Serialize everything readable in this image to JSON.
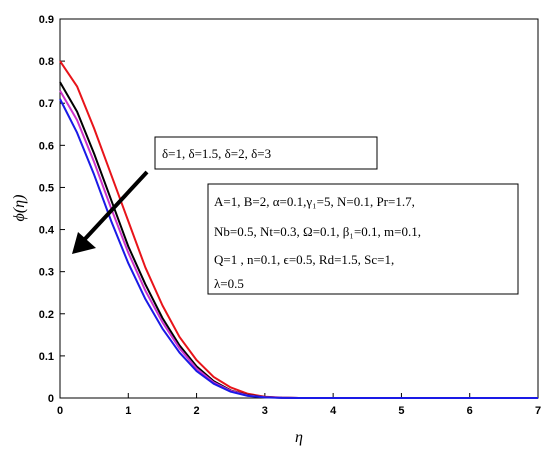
{
  "chart_data": {
    "type": "line",
    "title": "",
    "xlabel": "η",
    "ylabel": "ϕ(η)",
    "xlim": [
      0,
      7
    ],
    "ylim": [
      0,
      0.9
    ],
    "xticks": [
      "0",
      "1",
      "2",
      "3",
      "4",
      "5",
      "6",
      "7"
    ],
    "yticks": [
      "0",
      "0.1",
      "0.2",
      "0.3",
      "0.4",
      "0.5",
      "0.6",
      "0.7",
      "0.8",
      "0.9"
    ],
    "grid": false,
    "series": [
      {
        "color": "#e8141a",
        "x": [
          0,
          0.25,
          0.5,
          0.75,
          1.0,
          1.25,
          1.5,
          1.75,
          2.0,
          2.25,
          2.5,
          2.75,
          3.0,
          3.25,
          3.5,
          4.0,
          5.0,
          6.0,
          7.0
        ],
        "y": [
          0.8,
          0.74,
          0.64,
          0.53,
          0.42,
          0.31,
          0.22,
          0.145,
          0.09,
          0.05,
          0.025,
          0.01,
          0.003,
          0.001,
          0,
          0,
          0,
          0,
          0
        ]
      },
      {
        "color": "#000000",
        "x": [
          0,
          0.25,
          0.5,
          0.75,
          1.0,
          1.25,
          1.5,
          1.75,
          2.0,
          2.25,
          2.5,
          2.75,
          3.0,
          3.25,
          3.5,
          4.0,
          5.0,
          6.0,
          7.0
        ],
        "y": [
          0.75,
          0.68,
          0.58,
          0.47,
          0.36,
          0.27,
          0.19,
          0.125,
          0.075,
          0.04,
          0.018,
          0.007,
          0.002,
          0.0005,
          0,
          0,
          0,
          0,
          0
        ]
      },
      {
        "color": "#cc33cc",
        "x": [
          0,
          0.25,
          0.5,
          0.75,
          1.0,
          1.25,
          1.5,
          1.75,
          2.0,
          2.25,
          2.5,
          2.75,
          3.0,
          3.25,
          3.5,
          4.0,
          5.0,
          6.0,
          7.0
        ],
        "y": [
          0.73,
          0.66,
          0.56,
          0.45,
          0.345,
          0.255,
          0.18,
          0.118,
          0.07,
          0.037,
          0.017,
          0.006,
          0.002,
          0.0005,
          0,
          0,
          0,
          0,
          0
        ]
      },
      {
        "color": "#1a1ae6",
        "x": [
          0,
          0.25,
          0.5,
          0.75,
          1.0,
          1.25,
          1.5,
          1.75,
          2.0,
          2.25,
          2.5,
          2.75,
          3.0,
          3.25,
          3.5,
          4.0,
          5.0,
          6.0,
          7.0
        ],
        "y": [
          0.71,
          0.63,
          0.53,
          0.42,
          0.32,
          0.235,
          0.165,
          0.108,
          0.064,
          0.034,
          0.015,
          0.005,
          0.0015,
          0.0004,
          0,
          0,
          0,
          0,
          0
        ]
      }
    ],
    "annotations": {
      "delta_box": "δ=1, δ=1.5, δ=2, δ=3",
      "params_box": [
        "A=1, B=2, α=0.1,γ₁=5, N=0.1, Pr=1.7,",
        "Nb=0.5, Nt=0.3, Ω=0.1, β₁=0.1, m=0.1,",
        "Q=1 , n=0.1, ϵ=0.5, Rd=1.5, Sc=1,",
        "λ=0.5"
      ]
    }
  }
}
